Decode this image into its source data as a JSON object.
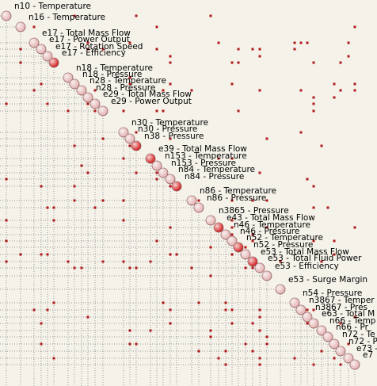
{
  "nodes": [
    {
      "label": "n10 - Temperature",
      "color": "#e3b1b1"
    },
    {
      "label": "n16 - Temperature",
      "color": "#e3b1b1"
    },
    {
      "label": "e17 - Total Mass Flow",
      "color": "#e3b1b1"
    },
    {
      "label": "e17 - Power Output",
      "color": "#e3b1b1"
    },
    {
      "label": "e17 - Rotation Speed",
      "color": "#e3b1b1"
    },
    {
      "label": "e17 - Efficiency",
      "color": "#d42020"
    },
    {
      "label": "n18 - Temperature",
      "color": "#e3b1b1"
    },
    {
      "label": "n18 - Pressure",
      "color": "#e3b1b1"
    },
    {
      "label": "n28 - Temperature",
      "color": "#e3b1b1"
    },
    {
      "label": "n28 - Pressure",
      "color": "#e3b1b1"
    },
    {
      "label": "e29 - Total Mass Flow",
      "color": "#e3b1b1"
    },
    {
      "label": "e29 - Power Output",
      "color": "#e3b1b1"
    },
    {
      "label": "n30 - Temperature",
      "color": "#e3b1b1"
    },
    {
      "label": "n30 - Pressure",
      "color": "#e3b1b1"
    },
    {
      "label": "n38 - Pressure",
      "color": "#d42020"
    },
    {
      "label": "e39 - Total Mass Flow",
      "color": "#d42020"
    },
    {
      "label": "n153 - Temperature",
      "color": "#e3b1b1"
    },
    {
      "label": "n153 - Pressure",
      "color": "#e3b1b1"
    },
    {
      "label": "n84 - Temperature",
      "color": "#e3b1b1"
    },
    {
      "label": "n84 - Pressure",
      "color": "#d42020"
    },
    {
      "label": "n86 - Temperature",
      "color": "#e3b1b1"
    },
    {
      "label": "n86 - Pressure",
      "color": "#e3b1b1"
    },
    {
      "label": "n3865 - Pressure",
      "color": "#e3b1b1"
    },
    {
      "label": "e43 - Total Mass Flow",
      "color": "#d42020"
    },
    {
      "label": "n46 - Temperature",
      "color": "#e3b1b1"
    },
    {
      "label": "n46 - Pressure",
      "color": "#e3b1b1"
    },
    {
      "label": "n52 - Temperature",
      "color": "#d42020"
    },
    {
      "label": "n52 - Pressure",
      "color": "#e3b1b1"
    },
    {
      "label": "e53 - Total Mass Flow",
      "color": "#d42020"
    },
    {
      "label": "e53 - Total Fluid Power",
      "color": "#e3b1b1"
    },
    {
      "label": "e53 - Efficiency",
      "color": "#e3b1b1"
    },
    {
      "label": "e53 - Surge Margin",
      "color": "#e3b1b1"
    },
    {
      "label": "n54 - Pressure",
      "color": "#e3b1b1"
    },
    {
      "label": "n3867 - Temper",
      "color": "#e3b1b1"
    },
    {
      "label": "n3867 - Pres",
      "color": "#e3b1b1"
    },
    {
      "label": "e63 - Total M",
      "color": "#e3b1b1"
    },
    {
      "label": "n66 - Temp",
      "color": "#e3b1b1"
    },
    {
      "label": "n66 - Pr",
      "color": "#e3b1b1"
    },
    {
      "label": "n72 - Te",
      "color": "#e3b1b1"
    },
    {
      "label": "n72 - P",
      "color": "#e3b1b1"
    },
    {
      "label": "e73 -",
      "color": "#e3b1b1"
    },
    {
      "label": "e7",
      "color": "#e3b1b1"
    }
  ]
}
